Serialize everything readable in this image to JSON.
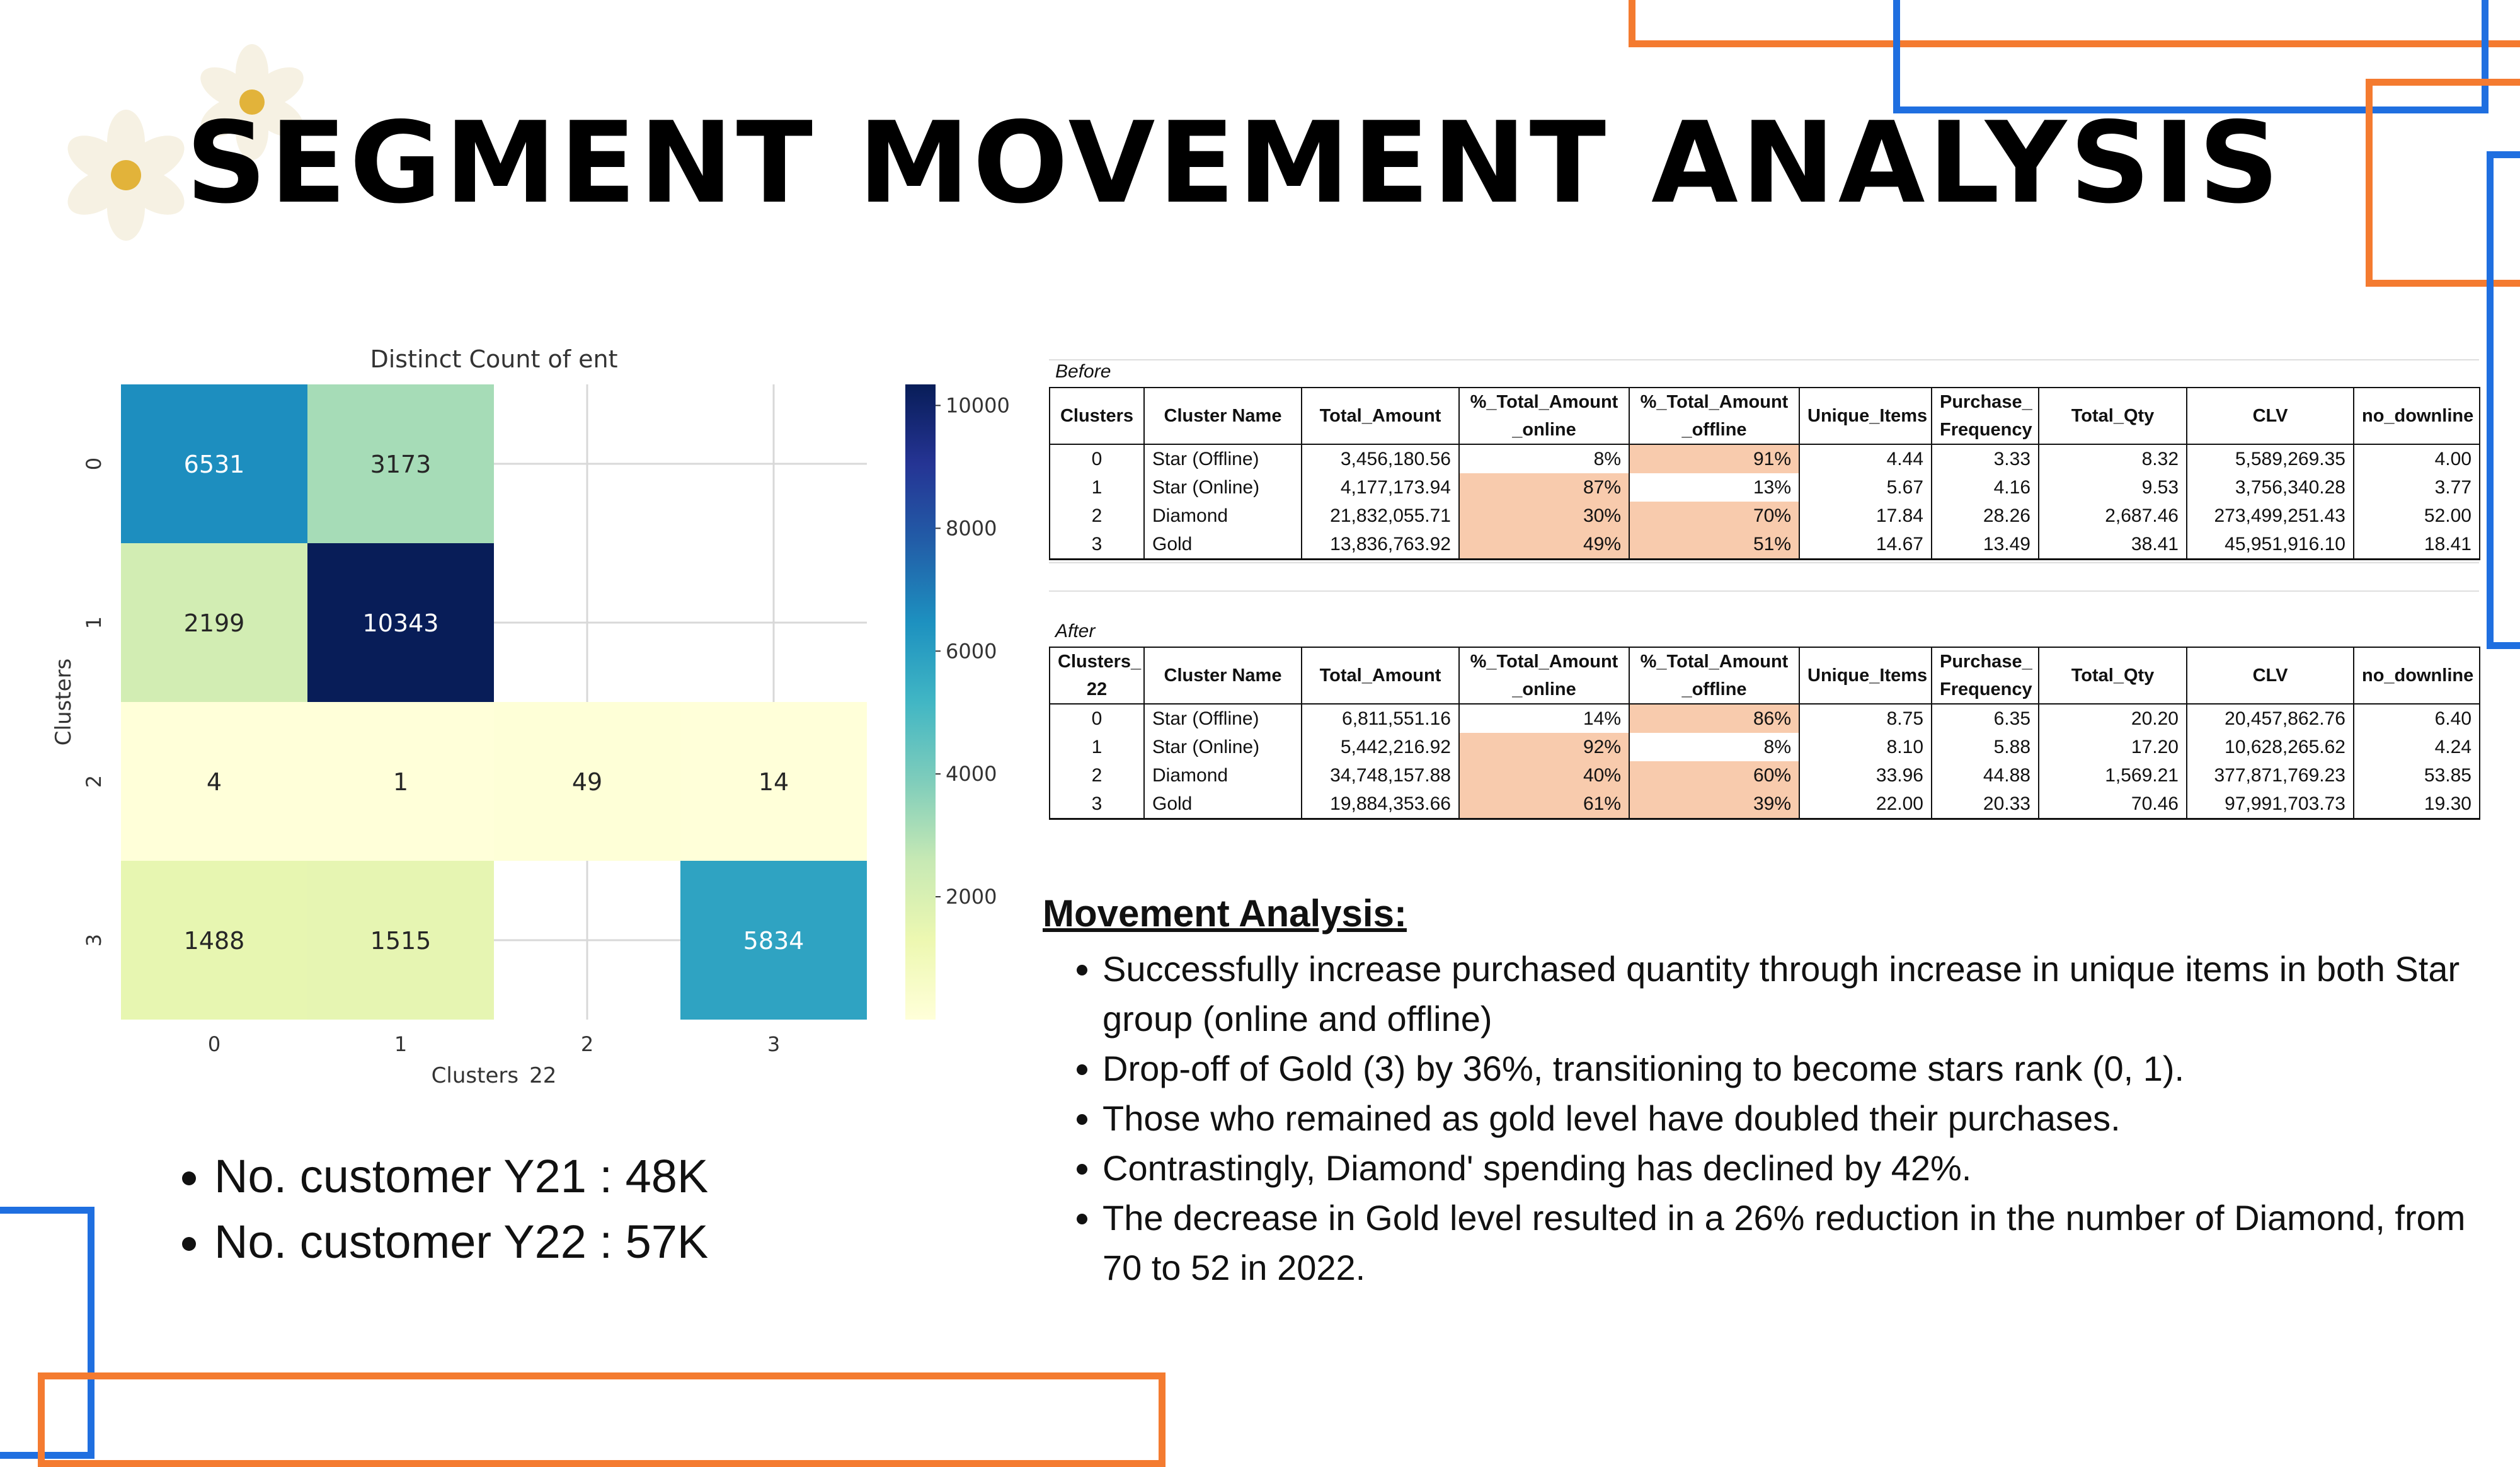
{
  "title": "SEGMENT MOVEMENT ANALYSIS",
  "colors": {
    "orange": "#f47b30",
    "blue": "#1f6fe0",
    "highlight": "#f8cbad",
    "flower_center": "#e2b33a"
  },
  "icons": [
    "flower-icon"
  ],
  "chart_data": {
    "type": "heatmap",
    "title": "Distinct Count of ent",
    "xlabel": "Clusters_22",
    "ylabel": "Clusters",
    "x_categories": [
      "0",
      "1",
      "2",
      "3"
    ],
    "y_categories": [
      "0",
      "1",
      "2",
      "3"
    ],
    "values": [
      [
        6531,
        3173,
        null,
        null
      ],
      [
        2199,
        10343,
        null,
        null
      ],
      [
        4,
        1,
        49,
        14
      ],
      [
        1488,
        1515,
        null,
        5834
      ]
    ],
    "colorbar": {
      "ticks": [
        2000,
        4000,
        6000,
        8000,
        10000
      ],
      "min": 0,
      "max": 10343,
      "colormap": "YlGnBu"
    },
    "grid": true
  },
  "before_table": {
    "caption": "Before",
    "headers": [
      "Clusters",
      "Cluster Name",
      "Total_Amount",
      "%_Total_Amount _online",
      "%_Total_Amount _offline",
      "Unique_Items",
      "Purchase_ Frequency",
      "Total_Qty",
      "CLV",
      "no_downline"
    ],
    "rows": [
      [
        "0",
        "Star (Offline)",
        "3,456,180.56",
        "8%",
        "91%",
        "4.44",
        "3.33",
        "8.32",
        "5,589,269.35",
        "4.00"
      ],
      [
        "1",
        "Star (Online)",
        "4,177,173.94",
        "87%",
        "13%",
        "5.67",
        "4.16",
        "9.53",
        "3,756,340.28",
        "3.77"
      ],
      [
        "2",
        "Diamond",
        "21,832,055.71",
        "30%",
        "70%",
        "17.84",
        "28.26",
        "2,687.46",
        "273,499,251.43",
        "52.00"
      ],
      [
        "3",
        "Gold",
        "13,836,763.92",
        "49%",
        "51%",
        "14.67",
        "13.49",
        "38.41",
        "45,951,916.10",
        "18.41"
      ]
    ]
  },
  "after_table": {
    "caption": "After",
    "headers": [
      "Clusters_ 22",
      "Cluster Name",
      "Total_Amount",
      "%_Total_Amount _online",
      "%_Total_Amount _offline",
      "Unique_Items",
      "Purchase_ Frequency",
      "Total_Qty",
      "CLV",
      "no_downline"
    ],
    "rows": [
      [
        "0",
        "Star (Offline)",
        "6,811,551.16",
        "14%",
        "86%",
        "8.75",
        "6.35",
        "20.20",
        "20,457,862.76",
        "6.40"
      ],
      [
        "1",
        "Star (Online)",
        "5,442,216.92",
        "92%",
        "8%",
        "8.10",
        "5.88",
        "17.20",
        "10,628,265.62",
        "4.24"
      ],
      [
        "2",
        "Diamond",
        "34,748,157.88",
        "40%",
        "60%",
        "33.96",
        "44.88",
        "1,569.21",
        "377,871,769.23",
        "53.85"
      ],
      [
        "3",
        "Gold",
        "19,884,353.66",
        "61%",
        "39%",
        "22.00",
        "20.33",
        "70.46",
        "97,991,703.73",
        "19.30"
      ]
    ]
  },
  "movement": {
    "heading": "Movement Analysis:",
    "items": [
      "Successfully increase purchased quantity through increase in unique items in both Star group (online and offline)",
      "Drop-off of Gold (3) by 36%, transitioning to become stars rank (0, 1).",
      "Those who remained as gold level have doubled their purchases.",
      "Contrastingly, Diamond' spending has declined by 42%.",
      "The decrease in Gold level resulted in a 26% reduction in the number of Diamond, from 70 to 52 in 2022."
    ]
  },
  "customers": {
    "items": [
      "No. customer Y21 : 48K",
      "No. customer Y22 : 57K"
    ]
  }
}
